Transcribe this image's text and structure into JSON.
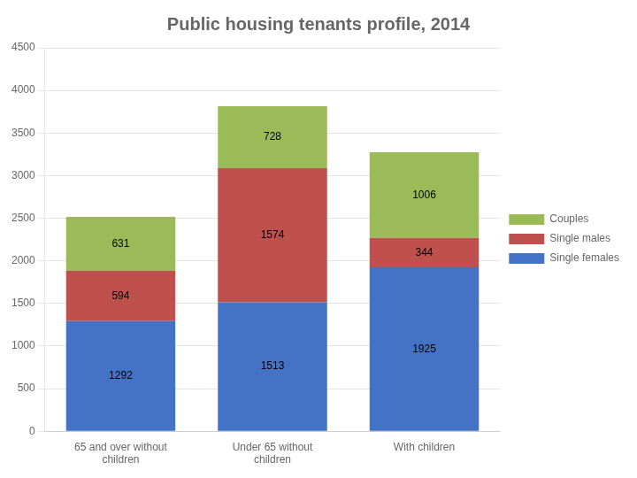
{
  "chart_data": {
    "type": "bar",
    "title": "Public housing tenants profile, 2014",
    "categories": [
      "65 and over without\nchildren",
      "Under 65 without\nchildren",
      "With children"
    ],
    "series": [
      {
        "name": "Single females",
        "color": "#4472C4",
        "values": [
          1292,
          1513,
          1925
        ]
      },
      {
        "name": "Single males",
        "color": "#C0504D",
        "values": [
          594,
          1574,
          344
        ]
      },
      {
        "name": "Couples",
        "color": "#9BBB59",
        "values": [
          631,
          728,
          1006
        ]
      }
    ],
    "stacked": true,
    "data_labels": true,
    "ylim": [
      0,
      4500
    ],
    "yticks": [
      0,
      500,
      1000,
      1500,
      2000,
      2500,
      3000,
      3500,
      4000,
      4500
    ],
    "grid": true,
    "legend": "right"
  }
}
